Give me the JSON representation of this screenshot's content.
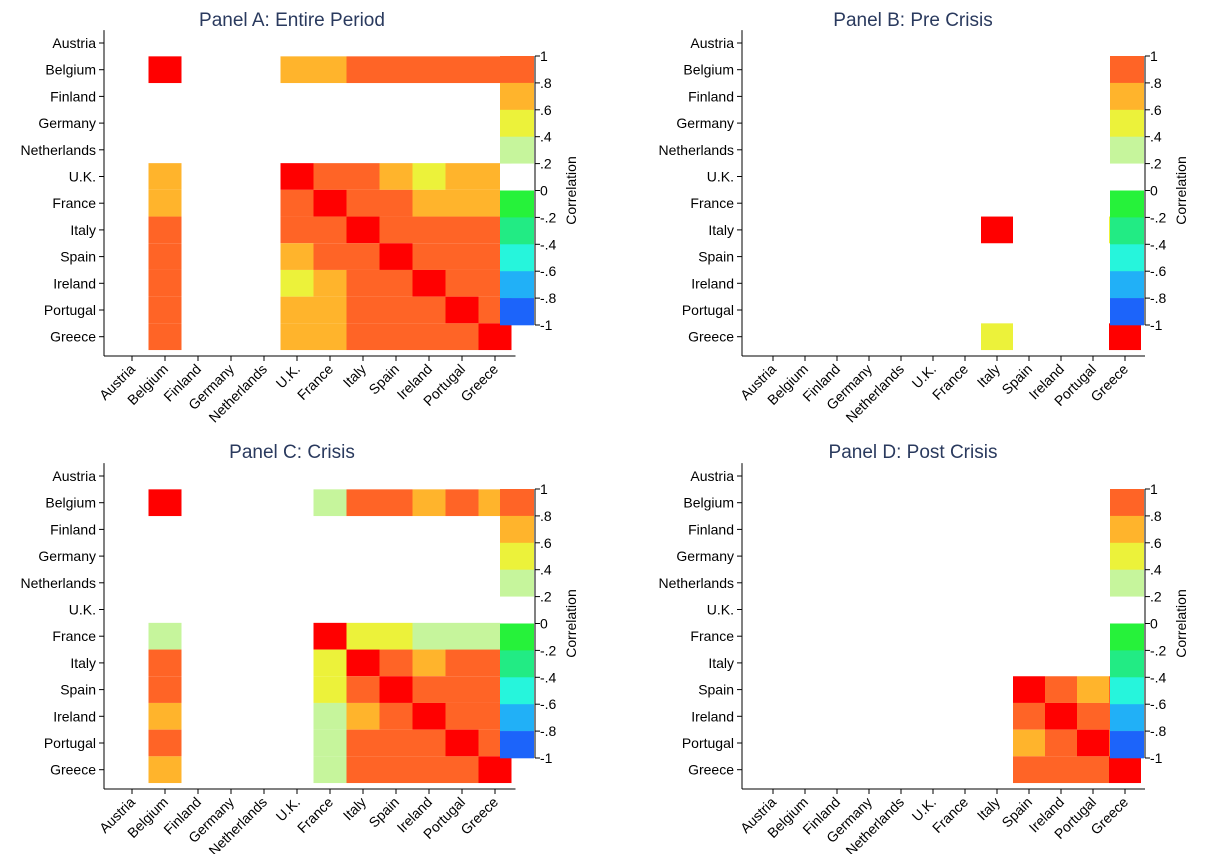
{
  "chart_data": [
    {
      "type": "heatmap",
      "title": "Panel A: Entire Period",
      "countries": [
        "Austria",
        "Belgium",
        "Finland",
        "Germany",
        "Netherlands",
        "U.K.",
        "France",
        "Italy",
        "Spain",
        "Ireland",
        "Portugal",
        "Greece"
      ],
      "colorbar_label": "Correlation",
      "colorbar_ticks": [
        "1",
        ".8",
        ".6",
        ".4",
        ".2",
        "0",
        "-.2",
        "-.4",
        "-.6",
        "-.8",
        "-1"
      ],
      "values": [
        [
          null,
          null,
          null,
          null,
          null,
          null,
          null,
          null,
          null,
          null,
          null,
          null
        ],
        [
          null,
          1.0,
          null,
          null,
          null,
          0.7,
          0.7,
          0.9,
          0.9,
          0.9,
          0.9,
          0.9
        ],
        [
          null,
          null,
          null,
          null,
          null,
          null,
          null,
          null,
          null,
          null,
          null,
          null
        ],
        [
          null,
          null,
          null,
          null,
          null,
          null,
          null,
          null,
          null,
          null,
          null,
          null
        ],
        [
          null,
          null,
          null,
          null,
          null,
          null,
          null,
          null,
          null,
          null,
          null,
          null
        ],
        [
          null,
          0.7,
          null,
          null,
          null,
          1.0,
          0.9,
          0.9,
          0.7,
          0.5,
          0.7,
          0.7
        ],
        [
          null,
          0.7,
          null,
          null,
          null,
          0.9,
          1.0,
          0.9,
          0.9,
          0.7,
          0.7,
          0.7
        ],
        [
          null,
          0.9,
          null,
          null,
          null,
          0.9,
          0.9,
          1.0,
          0.9,
          0.9,
          0.9,
          0.9
        ],
        [
          null,
          0.9,
          null,
          null,
          null,
          0.7,
          0.9,
          0.9,
          1.0,
          0.9,
          0.9,
          0.9
        ],
        [
          null,
          0.9,
          null,
          null,
          null,
          0.5,
          0.7,
          0.9,
          0.9,
          1.0,
          0.9,
          0.9
        ],
        [
          null,
          0.9,
          null,
          null,
          null,
          0.7,
          0.7,
          0.9,
          0.9,
          0.9,
          1.0,
          0.9
        ],
        [
          null,
          0.9,
          null,
          null,
          null,
          0.7,
          0.7,
          0.9,
          0.9,
          0.9,
          0.9,
          1.0
        ]
      ]
    },
    {
      "type": "heatmap",
      "title": "Panel B: Pre Crisis",
      "countries": [
        "Austria",
        "Belgium",
        "Finland",
        "Germany",
        "Netherlands",
        "U.K.",
        "France",
        "Italy",
        "Spain",
        "Ireland",
        "Portugal",
        "Greece"
      ],
      "colorbar_label": "Correlation",
      "colorbar_ticks": [
        "1",
        ".8",
        ".6",
        ".4",
        ".2",
        "0",
        "-.2",
        "-.4",
        "-.6",
        "-.8",
        "-1"
      ],
      "values": [
        [
          null,
          null,
          null,
          null,
          null,
          null,
          null,
          null,
          null,
          null,
          null,
          null
        ],
        [
          null,
          null,
          null,
          null,
          null,
          null,
          null,
          null,
          null,
          null,
          null,
          null
        ],
        [
          null,
          null,
          null,
          null,
          null,
          null,
          null,
          null,
          null,
          null,
          null,
          null
        ],
        [
          null,
          null,
          null,
          null,
          null,
          null,
          null,
          null,
          null,
          null,
          null,
          null
        ],
        [
          null,
          null,
          null,
          null,
          null,
          null,
          null,
          null,
          null,
          null,
          null,
          null
        ],
        [
          null,
          null,
          null,
          null,
          null,
          null,
          null,
          null,
          null,
          null,
          null,
          null
        ],
        [
          null,
          null,
          null,
          null,
          null,
          null,
          null,
          null,
          null,
          null,
          null,
          null
        ],
        [
          null,
          null,
          null,
          null,
          null,
          null,
          null,
          1.0,
          null,
          null,
          null,
          0.5
        ],
        [
          null,
          null,
          null,
          null,
          null,
          null,
          null,
          null,
          null,
          null,
          null,
          null
        ],
        [
          null,
          null,
          null,
          null,
          null,
          null,
          null,
          null,
          null,
          null,
          null,
          null
        ],
        [
          null,
          null,
          null,
          null,
          null,
          null,
          null,
          null,
          null,
          null,
          null,
          null
        ],
        [
          null,
          null,
          null,
          null,
          null,
          null,
          null,
          0.5,
          null,
          null,
          null,
          1.0
        ]
      ]
    },
    {
      "type": "heatmap",
      "title": "Panel C: Crisis",
      "countries": [
        "Austria",
        "Belgium",
        "Finland",
        "Germany",
        "Netherlands",
        "U.K.",
        "France",
        "Italy",
        "Spain",
        "Ireland",
        "Portugal",
        "Greece"
      ],
      "colorbar_label": "Correlation",
      "colorbar_ticks": [
        "1",
        ".8",
        ".6",
        ".4",
        ".2",
        "0",
        "-.2",
        "-.4",
        "-.6",
        "-.8",
        "-1"
      ],
      "values": [
        [
          null,
          null,
          null,
          null,
          null,
          null,
          null,
          null,
          null,
          null,
          null,
          null
        ],
        [
          null,
          1.0,
          null,
          null,
          null,
          null,
          0.3,
          0.9,
          0.9,
          0.7,
          0.9,
          0.7
        ],
        [
          null,
          null,
          null,
          null,
          null,
          null,
          null,
          null,
          null,
          null,
          null,
          null
        ],
        [
          null,
          null,
          null,
          null,
          null,
          null,
          null,
          null,
          null,
          null,
          null,
          null
        ],
        [
          null,
          null,
          null,
          null,
          null,
          null,
          null,
          null,
          null,
          null,
          null,
          null
        ],
        [
          null,
          null,
          null,
          null,
          null,
          null,
          null,
          null,
          null,
          null,
          null,
          null
        ],
        [
          null,
          0.3,
          null,
          null,
          null,
          null,
          1.0,
          0.5,
          0.5,
          0.3,
          0.3,
          0.3
        ],
        [
          null,
          0.9,
          null,
          null,
          null,
          null,
          0.5,
          1.0,
          0.9,
          0.7,
          0.9,
          0.9
        ],
        [
          null,
          0.9,
          null,
          null,
          null,
          null,
          0.5,
          0.9,
          1.0,
          0.9,
          0.9,
          0.9
        ],
        [
          null,
          0.7,
          null,
          null,
          null,
          null,
          0.3,
          0.7,
          0.9,
          1.0,
          0.9,
          0.9
        ],
        [
          null,
          0.9,
          null,
          null,
          null,
          null,
          0.3,
          0.9,
          0.9,
          0.9,
          1.0,
          0.9
        ],
        [
          null,
          0.7,
          null,
          null,
          null,
          null,
          0.3,
          0.9,
          0.9,
          0.9,
          0.9,
          1.0
        ]
      ]
    },
    {
      "type": "heatmap",
      "title": "Panel D: Post Crisis",
      "countries": [
        "Austria",
        "Belgium",
        "Finland",
        "Germany",
        "Netherlands",
        "U.K.",
        "France",
        "Italy",
        "Spain",
        "Ireland",
        "Portugal",
        "Greece"
      ],
      "colorbar_label": "Correlation",
      "colorbar_ticks": [
        "1",
        ".8",
        ".6",
        ".4",
        ".2",
        "0",
        "-.2",
        "-.4",
        "-.6",
        "-.8",
        "-1"
      ],
      "values": [
        [
          null,
          null,
          null,
          null,
          null,
          null,
          null,
          null,
          null,
          null,
          null,
          null
        ],
        [
          null,
          null,
          null,
          null,
          null,
          null,
          null,
          null,
          null,
          null,
          null,
          null
        ],
        [
          null,
          null,
          null,
          null,
          null,
          null,
          null,
          null,
          null,
          null,
          null,
          null
        ],
        [
          null,
          null,
          null,
          null,
          null,
          null,
          null,
          null,
          null,
          null,
          null,
          null
        ],
        [
          null,
          null,
          null,
          null,
          null,
          null,
          null,
          null,
          null,
          null,
          null,
          null
        ],
        [
          null,
          null,
          null,
          null,
          null,
          null,
          null,
          null,
          null,
          null,
          null,
          null
        ],
        [
          null,
          null,
          null,
          null,
          null,
          null,
          null,
          null,
          null,
          null,
          null,
          null
        ],
        [
          null,
          null,
          null,
          null,
          null,
          null,
          null,
          null,
          null,
          null,
          null,
          null
        ],
        [
          null,
          null,
          null,
          null,
          null,
          null,
          null,
          null,
          1.0,
          0.9,
          0.7,
          0.9
        ],
        [
          null,
          null,
          null,
          null,
          null,
          null,
          null,
          null,
          0.9,
          1.0,
          0.9,
          0.9
        ],
        [
          null,
          null,
          null,
          null,
          null,
          null,
          null,
          null,
          0.7,
          0.9,
          1.0,
          0.9
        ],
        [
          null,
          null,
          null,
          null,
          null,
          null,
          null,
          null,
          0.9,
          0.9,
          0.9,
          1.0
        ]
      ]
    }
  ],
  "colors": {
    "diag": "#ff0000",
    "b09": "#ff6426",
    "b07": "#ffb42c",
    "b05": "#ecf23a",
    "b03": "#c6f59c",
    "b01": "#ffffff",
    "n01": "#26f23a",
    "n03": "#22eb84",
    "n05": "#26f5dc",
    "n07": "#21b0f7",
    "n09": "#1c64fa",
    "title": "#2a3a5e"
  }
}
